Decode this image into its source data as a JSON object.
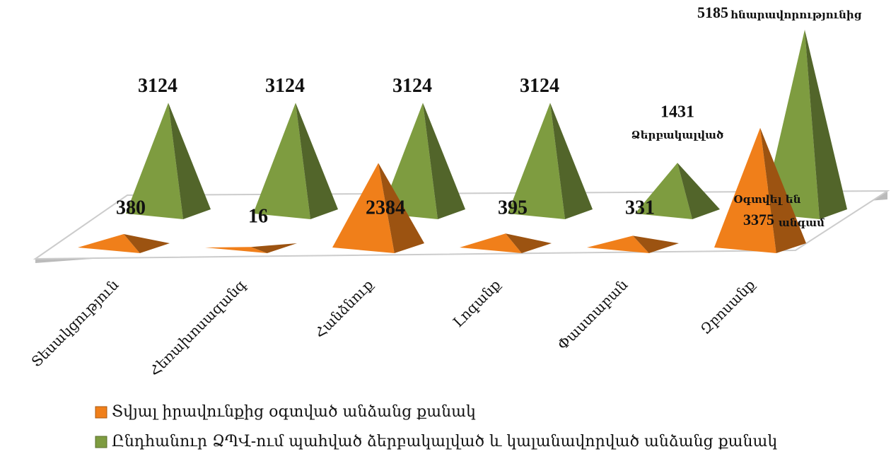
{
  "chart_data": {
    "type": "bar",
    "categories": [
      "Տեսակցություն",
      "Հեռախոսազանգ",
      "Հանձնուք",
      "Լոգանք",
      "Փաստաբան",
      "Զբոսանք"
    ],
    "series": [
      {
        "name": "Տվյալ իրավունքից օգտված անձանց քանակ",
        "color": "#f07f1a",
        "values": [
          380,
          16,
          2384,
          395,
          331,
          3375
        ]
      },
      {
        "name": "Ընդհանուր ՁՊՎ-ում պահված ձերբակալված և կալանավորված անձանց քանակ",
        "color": "#7e9c40",
        "values": [
          3124,
          3124,
          3124,
          3124,
          1431,
          5185
        ]
      }
    ],
    "annotations": [
      "հնարավորությունից",
      "Ձերբակալված",
      "Օգտվել են",
      "անգամ"
    ],
    "legend": "bottom"
  }
}
